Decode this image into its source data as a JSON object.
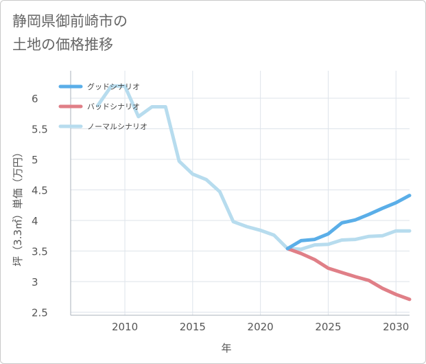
{
  "title_line1": "静岡県御前崎市の",
  "title_line2": "土地の価格推移",
  "chart_data": {
    "type": "line",
    "xlabel": "年",
    "ylabel": "坪（3.3㎡）単価（万円）",
    "xlim": [
      2006,
      2031
    ],
    "ylim": [
      2.45,
      6.45
    ],
    "xticks": [
      2010,
      2015,
      2020,
      2025,
      2030
    ],
    "yticks": [
      2.5,
      3,
      3.5,
      4,
      4.5,
      5,
      5.5,
      6
    ],
    "ytick_labels": [
      "2.5",
      "3",
      "3.5",
      "4",
      "4.5",
      "5",
      "5.5",
      "6"
    ],
    "grid": true,
    "legend_position": "top-left",
    "series": [
      {
        "name": "グッドシナリオ",
        "color": "#5aaee8",
        "points": [
          [
            2022,
            3.54
          ],
          [
            2023,
            3.67
          ],
          [
            2024,
            3.69
          ],
          [
            2025,
            3.78
          ],
          [
            2026,
            3.96
          ],
          [
            2027,
            4.01
          ],
          [
            2028,
            4.1
          ],
          [
            2029,
            4.2
          ],
          [
            2030,
            4.29
          ],
          [
            2031,
            4.41
          ]
        ]
      },
      {
        "name": "バッドシナリオ",
        "color": "#e07f87",
        "points": [
          [
            2022,
            3.54
          ],
          [
            2023,
            3.46
          ],
          [
            2024,
            3.36
          ],
          [
            2025,
            3.22
          ],
          [
            2026,
            3.15
          ],
          [
            2027,
            3.08
          ],
          [
            2028,
            3.02
          ],
          [
            2029,
            2.89
          ],
          [
            2030,
            2.79
          ],
          [
            2031,
            2.71
          ]
        ]
      },
      {
        "name": "ノーマルシナリオ",
        "color": "#b7dcee",
        "points": [
          [
            2008,
            5.88
          ],
          [
            2009,
            6.2
          ],
          [
            2010,
            6.2
          ],
          [
            2011,
            5.7
          ],
          [
            2012,
            5.86
          ],
          [
            2013,
            5.86
          ],
          [
            2014,
            4.97
          ],
          [
            2015,
            4.76
          ],
          [
            2016,
            4.67
          ],
          [
            2017,
            4.47
          ],
          [
            2018,
            3.98
          ],
          [
            2019,
            3.9
          ],
          [
            2020,
            3.84
          ],
          [
            2021,
            3.76
          ],
          [
            2022,
            3.54
          ],
          [
            2023,
            3.53
          ],
          [
            2024,
            3.6
          ],
          [
            2025,
            3.61
          ],
          [
            2026,
            3.68
          ],
          [
            2027,
            3.69
          ],
          [
            2028,
            3.74
          ],
          [
            2029,
            3.75
          ],
          [
            2030,
            3.83
          ],
          [
            2031,
            3.83
          ]
        ]
      }
    ]
  }
}
